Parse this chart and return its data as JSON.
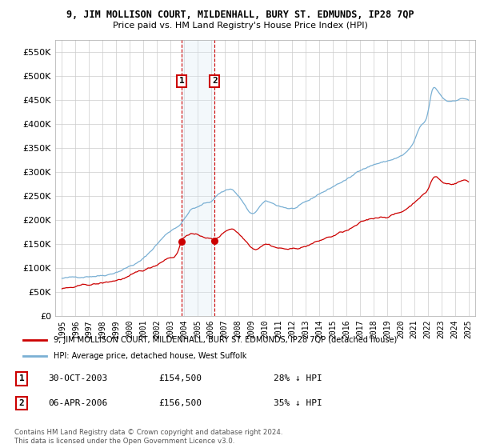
{
  "title": "9, JIM MOLLISON COURT, MILDENHALL, BURY ST. EDMUNDS, IP28 7QP",
  "subtitle": "Price paid vs. HM Land Registry's House Price Index (HPI)",
  "legend_line1": "9, JIM MOLLISON COURT, MILDENHALL, BURY ST. EDMUNDS, IP28 7QP (detached house)",
  "legend_line2": "HPI: Average price, detached house, West Suffolk",
  "sale1_label": "1",
  "sale1_date": "30-OCT-2003",
  "sale1_price": 154500,
  "sale1_pct": "28% ↓ HPI",
  "sale2_label": "2",
  "sale2_date": "06-APR-2006",
  "sale2_price": 156500,
  "sale2_pct": "35% ↓ HPI",
  "sale1_year": 2003.83,
  "sale2_year": 2006.27,
  "copyright": "Contains HM Land Registry data © Crown copyright and database right 2024.\nThis data is licensed under the Open Government Licence v3.0.",
  "red_color": "#cc0000",
  "blue_color": "#7ab0d4",
  "shade_color": "#daeaf5",
  "grid_color": "#cccccc",
  "ylim": [
    0,
    575000
  ],
  "yticks": [
    0,
    50000,
    100000,
    150000,
    200000,
    250000,
    300000,
    350000,
    400000,
    450000,
    500000,
    550000
  ],
  "xlim": [
    1994.5,
    2025.5
  ]
}
